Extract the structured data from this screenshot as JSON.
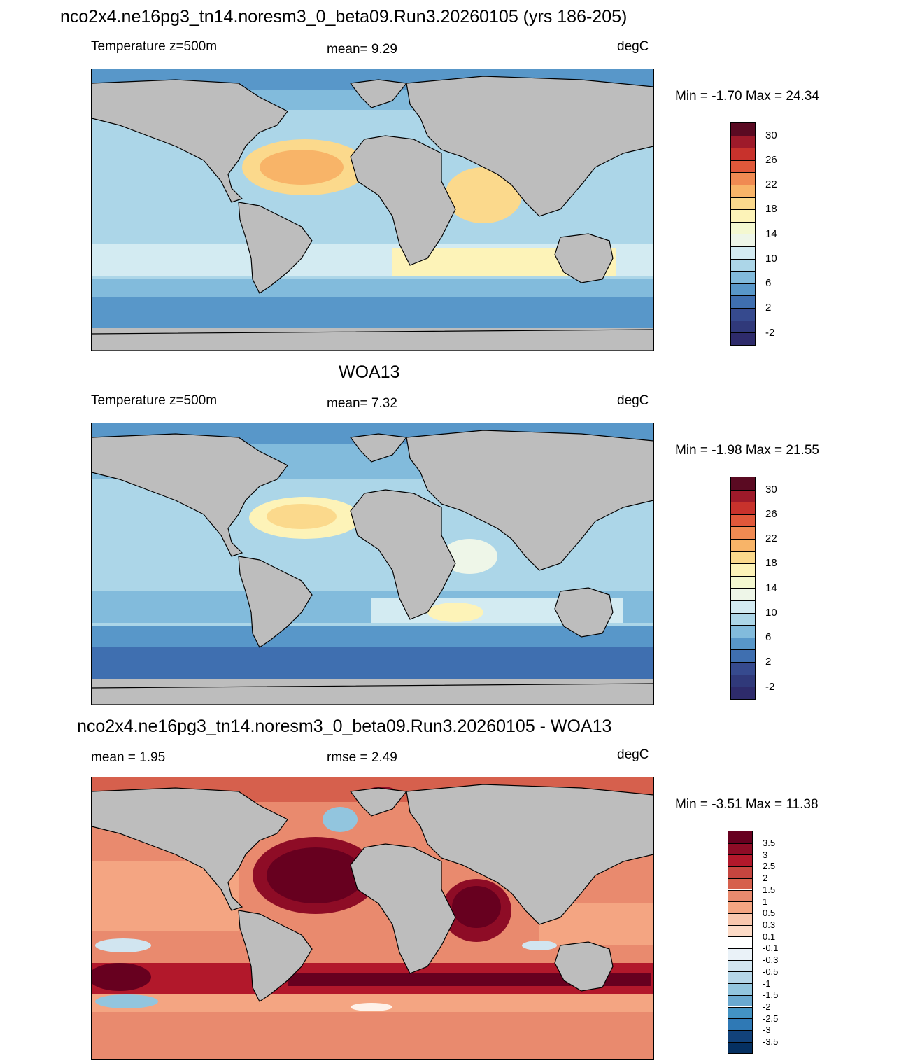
{
  "panel1": {
    "main_title": "nco2x4.ne16pg3_tn14.noresm3_0_beta09.Run3.20260105 (yrs 186-205)",
    "left_label": "Temperature z=500m",
    "center_label": "mean=   9.29",
    "unit": "degC",
    "minmax": "Min =  -1.70 Max =  24.34",
    "colorbar_labels": [
      "30",
      "26",
      "22",
      "18",
      "14",
      "10",
      "6",
      "2",
      "-2"
    ]
  },
  "panel2": {
    "main_title": "WOA13",
    "left_label": "Temperature z=500m",
    "center_label": "mean=   7.32",
    "unit": "degC",
    "minmax": "Min =  -1.98 Max =  21.55",
    "colorbar_labels": [
      "30",
      "26",
      "22",
      "18",
      "14",
      "10",
      "6",
      "2",
      "-2"
    ]
  },
  "panel3": {
    "main_title": "nco2x4.ne16pg3_tn14.noresm3_0_beta09.Run3.20260105 - WOA13",
    "left_label": "mean =   1.95",
    "center_label": "rmse =   2.49",
    "unit": "degC",
    "minmax": "Min =  -3.51 Max =  11.38",
    "colorbar_labels": [
      "3.5",
      "3",
      "2.5",
      "2",
      "1.5",
      "1",
      "0.5",
      "0.3",
      "0.1",
      "-0.1",
      "-0.3",
      "-0.5",
      "-1",
      "-1.5",
      "-2",
      "-2.5",
      "-3",
      "-3.5"
    ]
  },
  "colors": {
    "land": "#bdbdbd",
    "temp_scale": [
      "#5a0a22",
      "#9e1a2a",
      "#c8322c",
      "#e0583a",
      "#f08a52",
      "#f8b468",
      "#fbd98c",
      "#fdf3b8",
      "#eef6e8",
      "#d3ebf2",
      "#acd6e8",
      "#82bbdc",
      "#5897c9",
      "#3f6fb0",
      "#364a8e",
      "#2e2b6b"
    ],
    "diff_scale": [
      "#67001f",
      "#8e0c26",
      "#b2182b",
      "#c6453f",
      "#d6604d",
      "#e98a6e",
      "#f4a582",
      "#f9c7ae",
      "#fddbc7",
      "#fef2ea",
      "#ffffff",
      "#eaf2f8",
      "#d1e5f0",
      "#b5d6e8",
      "#92c5de",
      "#6aa9d0",
      "#4393c3",
      "#2f79b5",
      "#2166ac",
      "#12427a",
      "#053061"
    ]
  }
}
